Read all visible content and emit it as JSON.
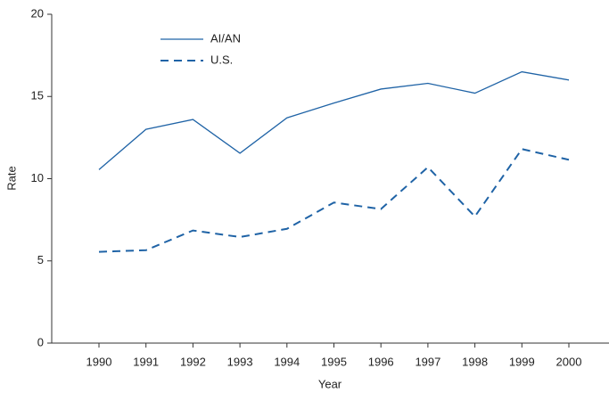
{
  "chart_data": {
    "type": "line",
    "x_label": "Year",
    "y_label": "Rate",
    "categories": [
      "1990",
      "1991",
      "1992",
      "1993",
      "1994",
      "1995",
      "1996",
      "1997",
      "1998",
      "1999",
      "2000"
    ],
    "series": [
      {
        "name": "AI/AN",
        "color": "#1f63a6",
        "dash": false,
        "values": [
          10.55,
          13.0,
          13.6,
          11.55,
          13.7,
          14.6,
          15.45,
          15.8,
          15.2,
          16.5,
          16.0
        ]
      },
      {
        "name": "U.S.",
        "color": "#1f63a6",
        "dash": true,
        "values": [
          5.55,
          5.65,
          6.85,
          6.45,
          6.95,
          8.55,
          8.15,
          10.7,
          7.7,
          11.8,
          11.15
        ]
      }
    ],
    "ylim": [
      0,
      20
    ],
    "yticks": [
      0,
      5,
      10,
      15,
      20
    ],
    "grid": false
  }
}
